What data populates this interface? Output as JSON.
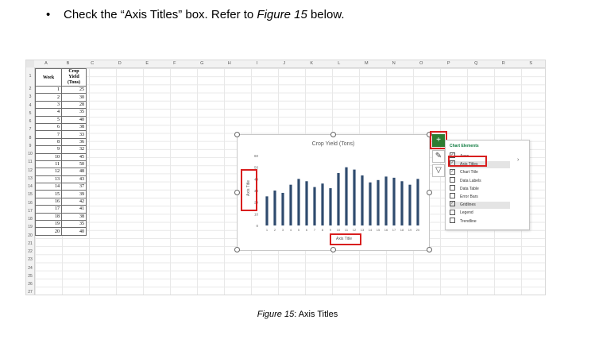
{
  "instruction": {
    "bullet": "•",
    "before": "Check the “Axis Titles” box. Refer to ",
    "figure_ref": "Figure 15",
    "after": " below."
  },
  "spreadsheet": {
    "columns": [
      "A",
      "B",
      "C",
      "D",
      "E",
      "F",
      "G",
      "H",
      "I",
      "J",
      "K",
      "L",
      "M",
      "N",
      "O",
      "P",
      "Q",
      "R",
      "S"
    ],
    "rows": [
      "1",
      "2",
      "3",
      "4",
      "5",
      "6",
      "7",
      "8",
      "9",
      "10",
      "11",
      "12",
      "13",
      "14",
      "15",
      "16",
      "17",
      "18",
      "19",
      "20",
      "21",
      "22",
      "23",
      "24",
      "25",
      "26",
      "27"
    ],
    "header_week": "Week",
    "header_yield": "Crop Yield (Tons)",
    "weeks": [
      1,
      2,
      3,
      4,
      5,
      6,
      7,
      8,
      9,
      10,
      11,
      12,
      13,
      14,
      15,
      16,
      17,
      18,
      19,
      20
    ],
    "yields": [
      25,
      30,
      28,
      35,
      40,
      38,
      33,
      36,
      32,
      45,
      50,
      48,
      43,
      37,
      39,
      42,
      41,
      38,
      35,
      40
    ]
  },
  "chart_data": {
    "type": "bar",
    "title": "Crop Yield (Tons)",
    "categories": [
      "1",
      "2",
      "3",
      "4",
      "5",
      "6",
      "7",
      "8",
      "9",
      "10",
      "11",
      "12",
      "13",
      "14",
      "15",
      "16",
      "17",
      "18",
      "19",
      "20"
    ],
    "values": [
      25,
      30,
      28,
      35,
      40,
      38,
      33,
      36,
      32,
      45,
      50,
      48,
      43,
      37,
      39,
      42,
      41,
      38,
      35,
      40
    ],
    "y_ticks": [
      "0",
      "10",
      "20",
      "30",
      "40",
      "50",
      "60"
    ],
    "ylim": [
      0,
      60
    ],
    "xlabel": "Axis Title",
    "ylabel": "Axis Title",
    "bar_color": "#2f4b6e",
    "grid": false
  },
  "chart_elements": {
    "title": "Chart Elements",
    "items": [
      {
        "label": "Axes",
        "checked": true
      },
      {
        "label": "Axis Titles",
        "checked": true
      },
      {
        "label": "Chart Title",
        "checked": true
      },
      {
        "label": "Data Labels",
        "checked": false
      },
      {
        "label": "Data Table",
        "checked": false
      },
      {
        "label": "Error Bars",
        "checked": false
      },
      {
        "label": "Gridlines",
        "checked": true
      },
      {
        "label": "Legend",
        "checked": false
      },
      {
        "label": "Trendline",
        "checked": false
      }
    ],
    "arrow": "›"
  },
  "side_buttons": {
    "plus": "+",
    "brush": "✎",
    "filter": "▽"
  },
  "caption": {
    "figure": "Figure 15",
    "text": ": Axis Titles"
  },
  "colors": {
    "highlight_red": "#d81e1e",
    "plus_green": "#2e7d32"
  }
}
